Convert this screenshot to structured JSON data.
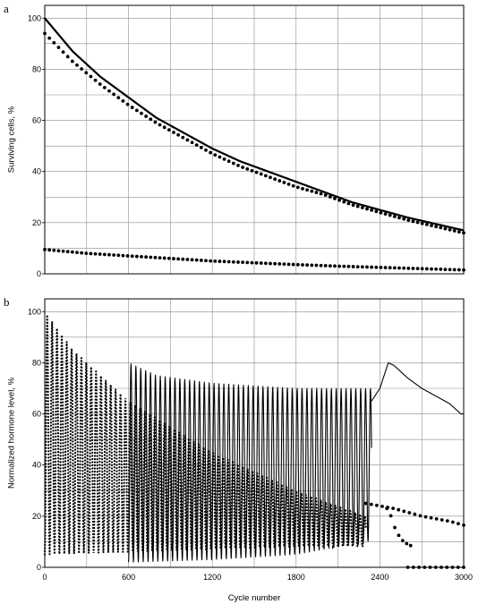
{
  "chart_data": [
    {
      "panel": "a",
      "type": "line",
      "title": "",
      "xlabel": "",
      "ylabel": "Surviving cells, %",
      "xlim": [
        0,
        3000
      ],
      "ylim": [
        0,
        105
      ],
      "yticks": [
        "0",
        "20",
        "40",
        "60",
        "80",
        "100"
      ],
      "grid": true,
      "series": [
        {
          "style": "solid",
          "x": [
            0,
            200,
            400,
            600,
            800,
            1000,
            1200,
            1400,
            1600,
            1800,
            2000,
            2200,
            2400,
            2600,
            2800,
            3000
          ],
          "y": [
            100,
            87,
            77,
            69,
            61,
            55,
            49,
            44,
            40,
            36,
            32,
            28,
            25,
            22,
            19.5,
            17
          ]
        },
        {
          "style": "dotted",
          "x": [
            0,
            200,
            400,
            600,
            800,
            1000,
            1200,
            1400,
            1600,
            1800,
            2000,
            2200,
            2400,
            2600,
            2800,
            3000
          ],
          "y": [
            94,
            83,
            74,
            66,
            59,
            53,
            47,
            42,
            38,
            34,
            31,
            27,
            24,
            21,
            18.5,
            16
          ]
        },
        {
          "style": "dotted",
          "x": [
            0,
            300,
            600,
            900,
            1200,
            1500,
            1800,
            2100,
            2400,
            2700,
            3000
          ],
          "y": [
            9.5,
            8,
            7,
            6,
            5,
            4.3,
            3.6,
            3,
            2.5,
            2,
            1.5
          ]
        }
      ]
    },
    {
      "panel": "b",
      "type": "line",
      "title": "",
      "xlabel": "Cycle number",
      "ylabel": "Normalized hormone level, %",
      "xlim": [
        0,
        3000
      ],
      "ylim": [
        0,
        105
      ],
      "xticks": [
        "0",
        "600",
        "1200",
        "1800",
        "2400",
        "3000"
      ],
      "yticks": [
        "0",
        "20",
        "40",
        "60",
        "80",
        "100"
      ],
      "grid": true,
      "series": [
        {
          "style": "dotted-oscillating",
          "x_range": [
            0,
            2300
          ],
          "cycle_length": 35,
          "upper_envelope": {
            "x": [
              0,
              200,
              600,
              1200,
              1800,
              2300
            ],
            "y": [
              100,
              85,
              65,
              45,
              30,
              20
            ]
          },
          "lower_envelope": {
            "x": [
              0,
              600,
              1200,
              1800,
              2300
            ],
            "y": [
              5,
              6,
              7,
              8,
              8
            ]
          }
        },
        {
          "style": "solid-oscillating",
          "x_range": [
            600,
            2340
          ],
          "cycle_length": 35,
          "upper_envelope": {
            "x": [
              600,
              800,
              1200,
              1800,
              2300
            ],
            "y": [
              80,
              75,
              72,
              70,
              70
            ]
          },
          "lower_envelope": {
            "x": [
              600,
              1200,
              1800,
              2300
            ],
            "y": [
              2,
              3,
              5,
              10
            ]
          }
        },
        {
          "style": "solid",
          "x": [
            2340,
            2400,
            2460,
            2500,
            2600,
            2700,
            2800,
            2900,
            2980,
            3000
          ],
          "y": [
            65,
            70,
            80,
            79,
            74,
            70,
            67,
            64,
            60,
            60
          ]
        },
        {
          "style": "dotted",
          "x": [
            2300,
            2400,
            2500,
            2600,
            2700,
            2800,
            2900,
            3000
          ],
          "y": [
            25,
            24,
            23,
            21.5,
            20,
            19,
            18,
            16.5
          ]
        },
        {
          "style": "dotted",
          "x": [
            2450,
            2480,
            2510,
            2540,
            2570,
            2600,
            2620
          ],
          "y": [
            23,
            20,
            15,
            12,
            10,
            9,
            8.5
          ]
        },
        {
          "style": "dotted",
          "x": [
            2600,
            2800,
            3000
          ],
          "y": [
            0,
            0,
            0
          ]
        }
      ]
    }
  ]
}
